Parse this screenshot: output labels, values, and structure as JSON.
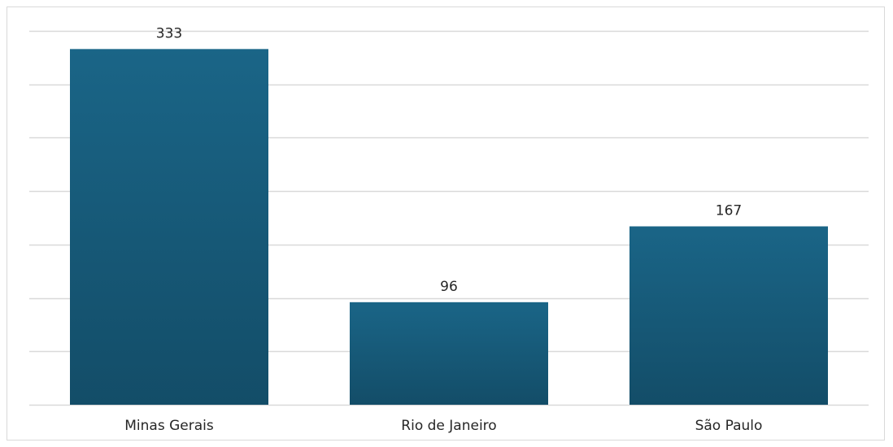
{
  "chart_data": {
    "type": "bar",
    "categories": [
      "Minas Gerais",
      "Rio de Janeiro",
      "São Paulo"
    ],
    "values": [
      333,
      96,
      167
    ],
    "data_labels": [
      "333",
      "96",
      "167"
    ],
    "title": "",
    "xlabel": "",
    "ylabel": "",
    "ylim": [
      0,
      350
    ],
    "grid": true,
    "legend": "none",
    "bar_color_top": "#1a6587",
    "bar_color_bottom": "#134d68",
    "grid_color": "#d9d9d9"
  }
}
